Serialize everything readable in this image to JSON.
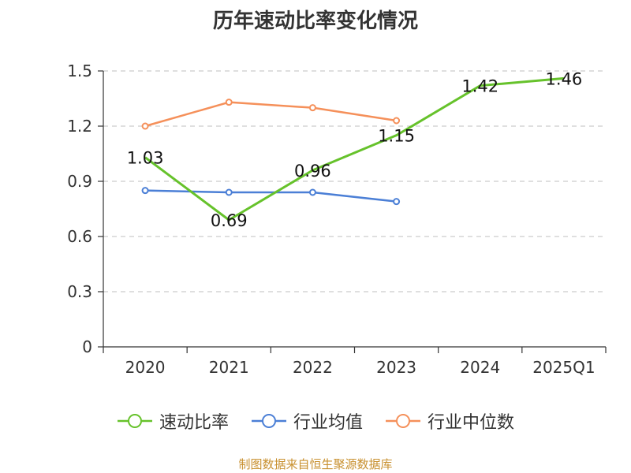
{
  "chart_data": {
    "type": "line",
    "title": "历年速动比率变化情况",
    "categories": [
      "2020",
      "2021",
      "2022",
      "2023",
      "2024",
      "2025Q1"
    ],
    "ylim": [
      0,
      1.5
    ],
    "yticks": [
      "0",
      "0.3",
      "0.6",
      "0.9",
      "1.2",
      "1.5"
    ],
    "grid": true,
    "legend_position": "bottom",
    "series": [
      {
        "name": "速动比率",
        "color": "#66c22b",
        "values": [
          1.03,
          0.69,
          0.96,
          1.15,
          1.42,
          1.46
        ],
        "labels": [
          "1.03",
          "0.69",
          "0.96",
          "1.15",
          "1.42",
          "1.46"
        ],
        "markers": false
      },
      {
        "name": "行业均值",
        "color": "#4b7fd6",
        "values": [
          0.85,
          0.84,
          0.84,
          0.79,
          null,
          null
        ],
        "markers": true
      },
      {
        "name": "行业中位数",
        "color": "#f5905a",
        "values": [
          1.2,
          1.33,
          1.3,
          1.23,
          null,
          null
        ],
        "markers": true
      }
    ],
    "source": "制图数据来自恒生聚源数据库"
  }
}
